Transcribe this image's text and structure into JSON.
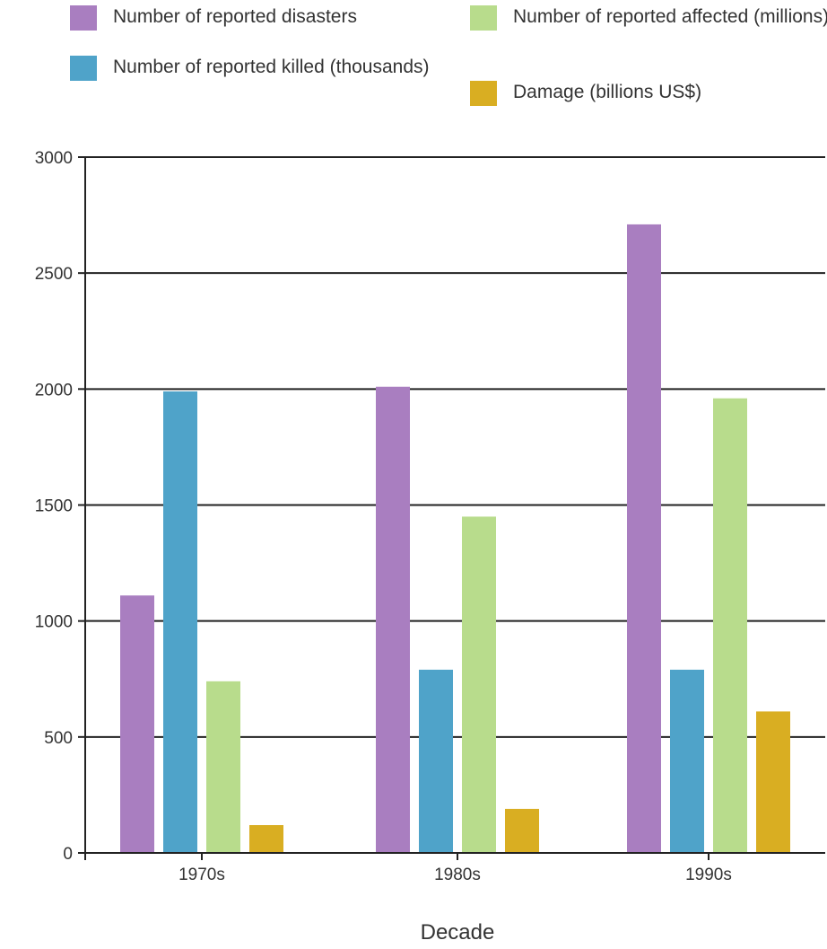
{
  "chart_data": {
    "type": "bar",
    "title": "",
    "xlabel": "Decade",
    "ylabel": "",
    "categories": [
      "1970s",
      "1980s",
      "1990s"
    ],
    "ylim": [
      0,
      3000
    ],
    "yticks": [
      0,
      500,
      1000,
      1500,
      2000,
      2500,
      3000
    ],
    "grid": "horizontal",
    "legend_position": "top",
    "series": [
      {
        "name": "Number of reported disasters",
        "color": "#a97ec0",
        "values": [
          1110,
          2010,
          2710
        ]
      },
      {
        "name": "Number of reported killed (thousands)",
        "color": "#4fa3c9",
        "values": [
          1990,
          790,
          790
        ]
      },
      {
        "name": "Number of reported affected (millions)",
        "color": "#b8dc8c",
        "values": [
          740,
          1450,
          1960
        ]
      },
      {
        "name": "Damage (billions US$)",
        "color": "#d9ae22",
        "values": [
          120,
          190,
          610
        ]
      }
    ]
  }
}
